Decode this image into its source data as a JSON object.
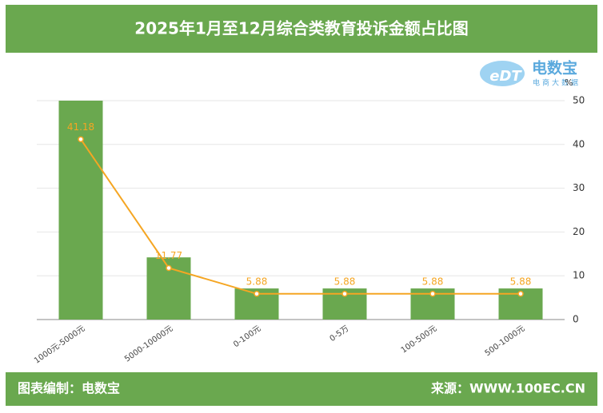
{
  "chart_data": {
    "type": "bar",
    "title": "2025年1月至12月综合类教育投诉金额占比图",
    "categories": [
      "1000元-5000元",
      "5000-10000元",
      "0-100元",
      "0-5万",
      "100-500元",
      "500-1000元"
    ],
    "series": [
      {
        "type": "bar",
        "color": "#6aa84f",
        "values": [
          50,
          14.2,
          7.1,
          7.1,
          7.1,
          7.1
        ]
      },
      {
        "type": "line",
        "color": "#f5a623",
        "values": [
          41.18,
          11.77,
          5.88,
          5.88,
          5.88,
          5.88
        ]
      }
    ],
    "y_unit": "%",
    "ylim": [
      0,
      50
    ],
    "yticks": [
      0,
      10,
      20,
      30,
      40,
      50
    ],
    "grid": true
  },
  "logo": {
    "mark": "eDT",
    "name": "电数宝",
    "tagline": "电商大数据"
  },
  "footer": {
    "left": "图表编制：电数宝",
    "right": "来源：WWW.100EC.CN"
  }
}
